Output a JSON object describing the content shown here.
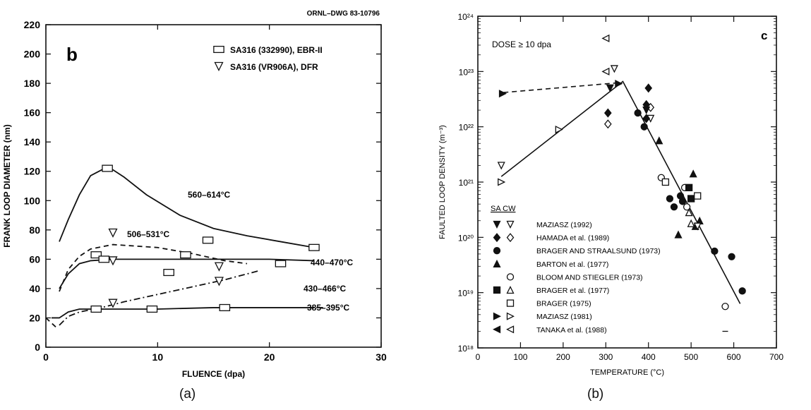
{
  "captions": [
    "(a)",
    "(b)"
  ],
  "chart_data": [
    {
      "type": "scatter",
      "drawing_id": "ORNL–DWG 83-10796",
      "panel_letter": "b",
      "xlabel": "FLUENCE (dpa)",
      "ylabel": "FRANK LOOP DIAMETER (nm)",
      "xlim": [
        0,
        30
      ],
      "ylim": [
        0,
        220
      ],
      "xticks": [
        0,
        10,
        20,
        30
      ],
      "yticks": [
        0,
        20,
        40,
        60,
        80,
        100,
        120,
        140,
        160,
        180,
        200,
        220
      ],
      "legend": [
        {
          "label": "SA316 (332990), EBR-II",
          "marker": "rect-open"
        },
        {
          "label": "SA316 (VR906A), DFR",
          "marker": "triangle-down-open"
        }
      ],
      "series": [
        {
          "name": "SA316 (332990), EBR-II",
          "marker": "rect-open",
          "points": [
            [
              5.5,
              122
            ],
            [
              4.5,
              63
            ],
            [
              5.2,
              60
            ],
            [
              12.5,
              63
            ],
            [
              14.5,
              73
            ],
            [
              11,
              51
            ],
            [
              4.5,
              26
            ],
            [
              9.5,
              26
            ],
            [
              16,
              27
            ],
            [
              21,
              57
            ],
            [
              24,
              68
            ]
          ]
        },
        {
          "name": "SA316 (VR906A), DFR",
          "marker": "triangle-down-open",
          "points": [
            [
              6,
              78
            ],
            [
              6,
              59
            ],
            [
              15.5,
              55
            ],
            [
              15.5,
              45
            ],
            [
              6,
              30
            ]
          ]
        }
      ],
      "curves": [
        {
          "label": "560–614°C",
          "style": "solid",
          "points": [
            [
              1.2,
              72
            ],
            [
              2,
              87
            ],
            [
              3,
              104
            ],
            [
              4,
              117
            ],
            [
              5,
              121
            ],
            [
              6,
              121
            ],
            [
              7,
              116
            ],
            [
              9,
              104
            ],
            [
              12,
              90
            ],
            [
              15,
              81
            ],
            [
              18,
              76
            ],
            [
              21,
              72
            ],
            [
              24,
              68
            ]
          ]
        },
        {
          "label": "506–531°C",
          "style": "dashed",
          "points": [
            [
              1.2,
              38
            ],
            [
              2,
              53
            ],
            [
              3,
              62
            ],
            [
              4,
              67
            ],
            [
              6,
              70
            ],
            [
              8,
              69
            ],
            [
              10,
              68
            ],
            [
              13,
              64
            ],
            [
              16,
              59
            ],
            [
              18,
              57
            ]
          ]
        },
        {
          "label": "440–470°C",
          "style": "solid",
          "points": [
            [
              1.2,
              40
            ],
            [
              2,
              50
            ],
            [
              3,
              57
            ],
            [
              4,
              59
            ],
            [
              6,
              60
            ],
            [
              10,
              60
            ],
            [
              15,
              60
            ],
            [
              20,
              60
            ],
            [
              24,
              59
            ]
          ]
        },
        {
          "label": "430–466°C",
          "style": "dashdot",
          "points": [
            [
              1.2,
              15
            ],
            [
              2,
              21
            ],
            [
              3,
              24
            ],
            [
              5,
              27
            ],
            [
              7,
              31
            ],
            [
              10,
              36
            ],
            [
              13,
              41
            ],
            [
              16,
              46
            ],
            [
              19,
              52
            ]
          ]
        },
        {
          "label": "385–395°C",
          "style": "solid",
          "points": [
            [
              0.5,
              20
            ],
            [
              1.2,
              20
            ],
            [
              2,
              24
            ],
            [
              3,
              26
            ],
            [
              5,
              26
            ],
            [
              10,
              26
            ],
            [
              15,
              27
            ],
            [
              20,
              27
            ],
            [
              24,
              27
            ]
          ]
        },
        {
          "label": "",
          "style": "dashed",
          "points": [
            [
              0,
              20
            ],
            [
              1,
              13
            ]
          ]
        }
      ]
    },
    {
      "type": "scatter",
      "panel_letter": "c",
      "annotation": "DOSE ≥ 10 dpa",
      "xlabel": "TEMPERATURE (°C)",
      "ylabel": "FAULTED LOOP DENSITY (m⁻³)",
      "xlim": [
        0,
        700
      ],
      "ylim_exponent": [
        18,
        24
      ],
      "xticks": [
        0,
        100,
        200,
        300,
        400,
        500,
        600,
        700
      ],
      "yticks": [
        "10¹⁸",
        "10¹⁹",
        "10²⁰",
        "10²¹",
        "10²²",
        "10²³",
        "10²⁴"
      ],
      "log_y": true,
      "legend_header": "SA  CW",
      "legend": [
        {
          "label": "MAZIASZ (1992)",
          "sa": "tri-down-filled",
          "cw": "tri-down-open"
        },
        {
          "label": "HAMADA et al. (1989)",
          "sa": "diamond-filled",
          "cw": "diamond-open"
        },
        {
          "label": "BRAGER AND STRAALSUND (1973)",
          "sa": "circle-filled",
          "cw": ""
        },
        {
          "label": "BARTON et al. (1977)",
          "sa": "tri-up-filled",
          "cw": ""
        },
        {
          "label": "BLOOM AND STIEGLER (1973)",
          "sa": "",
          "cw": "circle-open"
        },
        {
          "label": "BRAGER et al. (1977)",
          "sa": "square-filled",
          "cw": "tri-up-open"
        },
        {
          "label": "BRAGER (1975)",
          "sa": "",
          "cw": "square-open"
        },
        {
          "label": "MAZIASZ (1981)",
          "sa": "tri-right-filled",
          "cw": "tri-right-open"
        },
        {
          "label": "TANAKA et al. (1988)",
          "sa": "tri-left-filled",
          "cw": "tri-left-open"
        }
      ],
      "points": [
        {
          "m": "tri-down-open",
          "x": 55,
          "e": 21.3
        },
        {
          "m": "tri-right-open",
          "x": 55,
          "e": 21.0
        },
        {
          "m": "tri-right-open",
          "x": 190,
          "e": 21.95
        },
        {
          "m": "tri-left-open",
          "x": 300,
          "e": 23.6
        },
        {
          "m": "tri-left-open",
          "x": 300,
          "e": 23.0
        },
        {
          "m": "tri-down-open",
          "x": 320,
          "e": 23.05
        },
        {
          "m": "diamond-filled",
          "x": 305,
          "e": 22.25
        },
        {
          "m": "diamond-open",
          "x": 305,
          "e": 22.05
        },
        {
          "m": "tri-down-filled",
          "x": 310,
          "e": 22.7
        },
        {
          "m": "tri-right-filled",
          "x": 58,
          "e": 22.6
        },
        {
          "m": "tri-right-filled",
          "x": 330,
          "e": 22.78
        },
        {
          "m": "diamond-filled",
          "x": 400,
          "e": 22.7
        },
        {
          "m": "diamond-filled",
          "x": 395,
          "e": 22.4
        },
        {
          "m": "diamond-open",
          "x": 405,
          "e": 22.35
        },
        {
          "m": "tri-down-open",
          "x": 405,
          "e": 22.15
        },
        {
          "m": "circle-filled",
          "x": 375,
          "e": 22.25
        },
        {
          "m": "circle-filled",
          "x": 390,
          "e": 22.0
        },
        {
          "m": "tri-down-filled",
          "x": 395,
          "e": 22.3
        },
        {
          "m": "diamond-filled",
          "x": 395,
          "e": 22.15
        },
        {
          "m": "tri-up-filled",
          "x": 425,
          "e": 21.75
        },
        {
          "m": "circle-open",
          "x": 430,
          "e": 21.08
        },
        {
          "m": "square-open",
          "x": 440,
          "e": 21.0
        },
        {
          "m": "circle-filled",
          "x": 450,
          "e": 20.7
        },
        {
          "m": "circle-filled",
          "x": 460,
          "e": 20.55
        },
        {
          "m": "circle-filled",
          "x": 475,
          "e": 20.75
        },
        {
          "m": "circle-filled",
          "x": 480,
          "e": 20.65
        },
        {
          "m": "circle-open",
          "x": 485,
          "e": 20.9
        },
        {
          "m": "square-filled",
          "x": 495,
          "e": 20.9
        },
        {
          "m": "square-filled",
          "x": 500,
          "e": 20.7
        },
        {
          "m": "square-open",
          "x": 515,
          "e": 20.75
        },
        {
          "m": "circle-open",
          "x": 490,
          "e": 20.55
        },
        {
          "m": "tri-up-open",
          "x": 495,
          "e": 20.45
        },
        {
          "m": "tri-up-filled",
          "x": 505,
          "e": 21.15
        },
        {
          "m": "tri-up-filled",
          "x": 470,
          "e": 20.05
        },
        {
          "m": "tri-up-open",
          "x": 500,
          "e": 20.25
        },
        {
          "m": "tri-up-filled",
          "x": 510,
          "e": 20.2
        },
        {
          "m": "tri-up-filled",
          "x": 520,
          "e": 20.3
        },
        {
          "m": "tri-down-open",
          "x": 515,
          "e": 20.2
        },
        {
          "m": "circle-filled",
          "x": 555,
          "e": 19.75
        },
        {
          "m": "circle-filled",
          "x": 595,
          "e": 19.65
        },
        {
          "m": "circle-filled",
          "x": 620,
          "e": 19.03
        },
        {
          "m": "circle-open",
          "x": 580,
          "e": 18.75
        },
        {
          "m": "dash",
          "x": 580,
          "e": 18.3
        }
      ],
      "lines": [
        {
          "style": "solid",
          "points": [
            [
              55,
              21.1
            ],
            [
              340,
              22.82
            ],
            [
              615,
              18.8
            ]
          ]
        },
        {
          "style": "dashed",
          "points": [
            [
              60,
              22.62
            ],
            [
              335,
              22.8
            ]
          ]
        }
      ]
    }
  ]
}
